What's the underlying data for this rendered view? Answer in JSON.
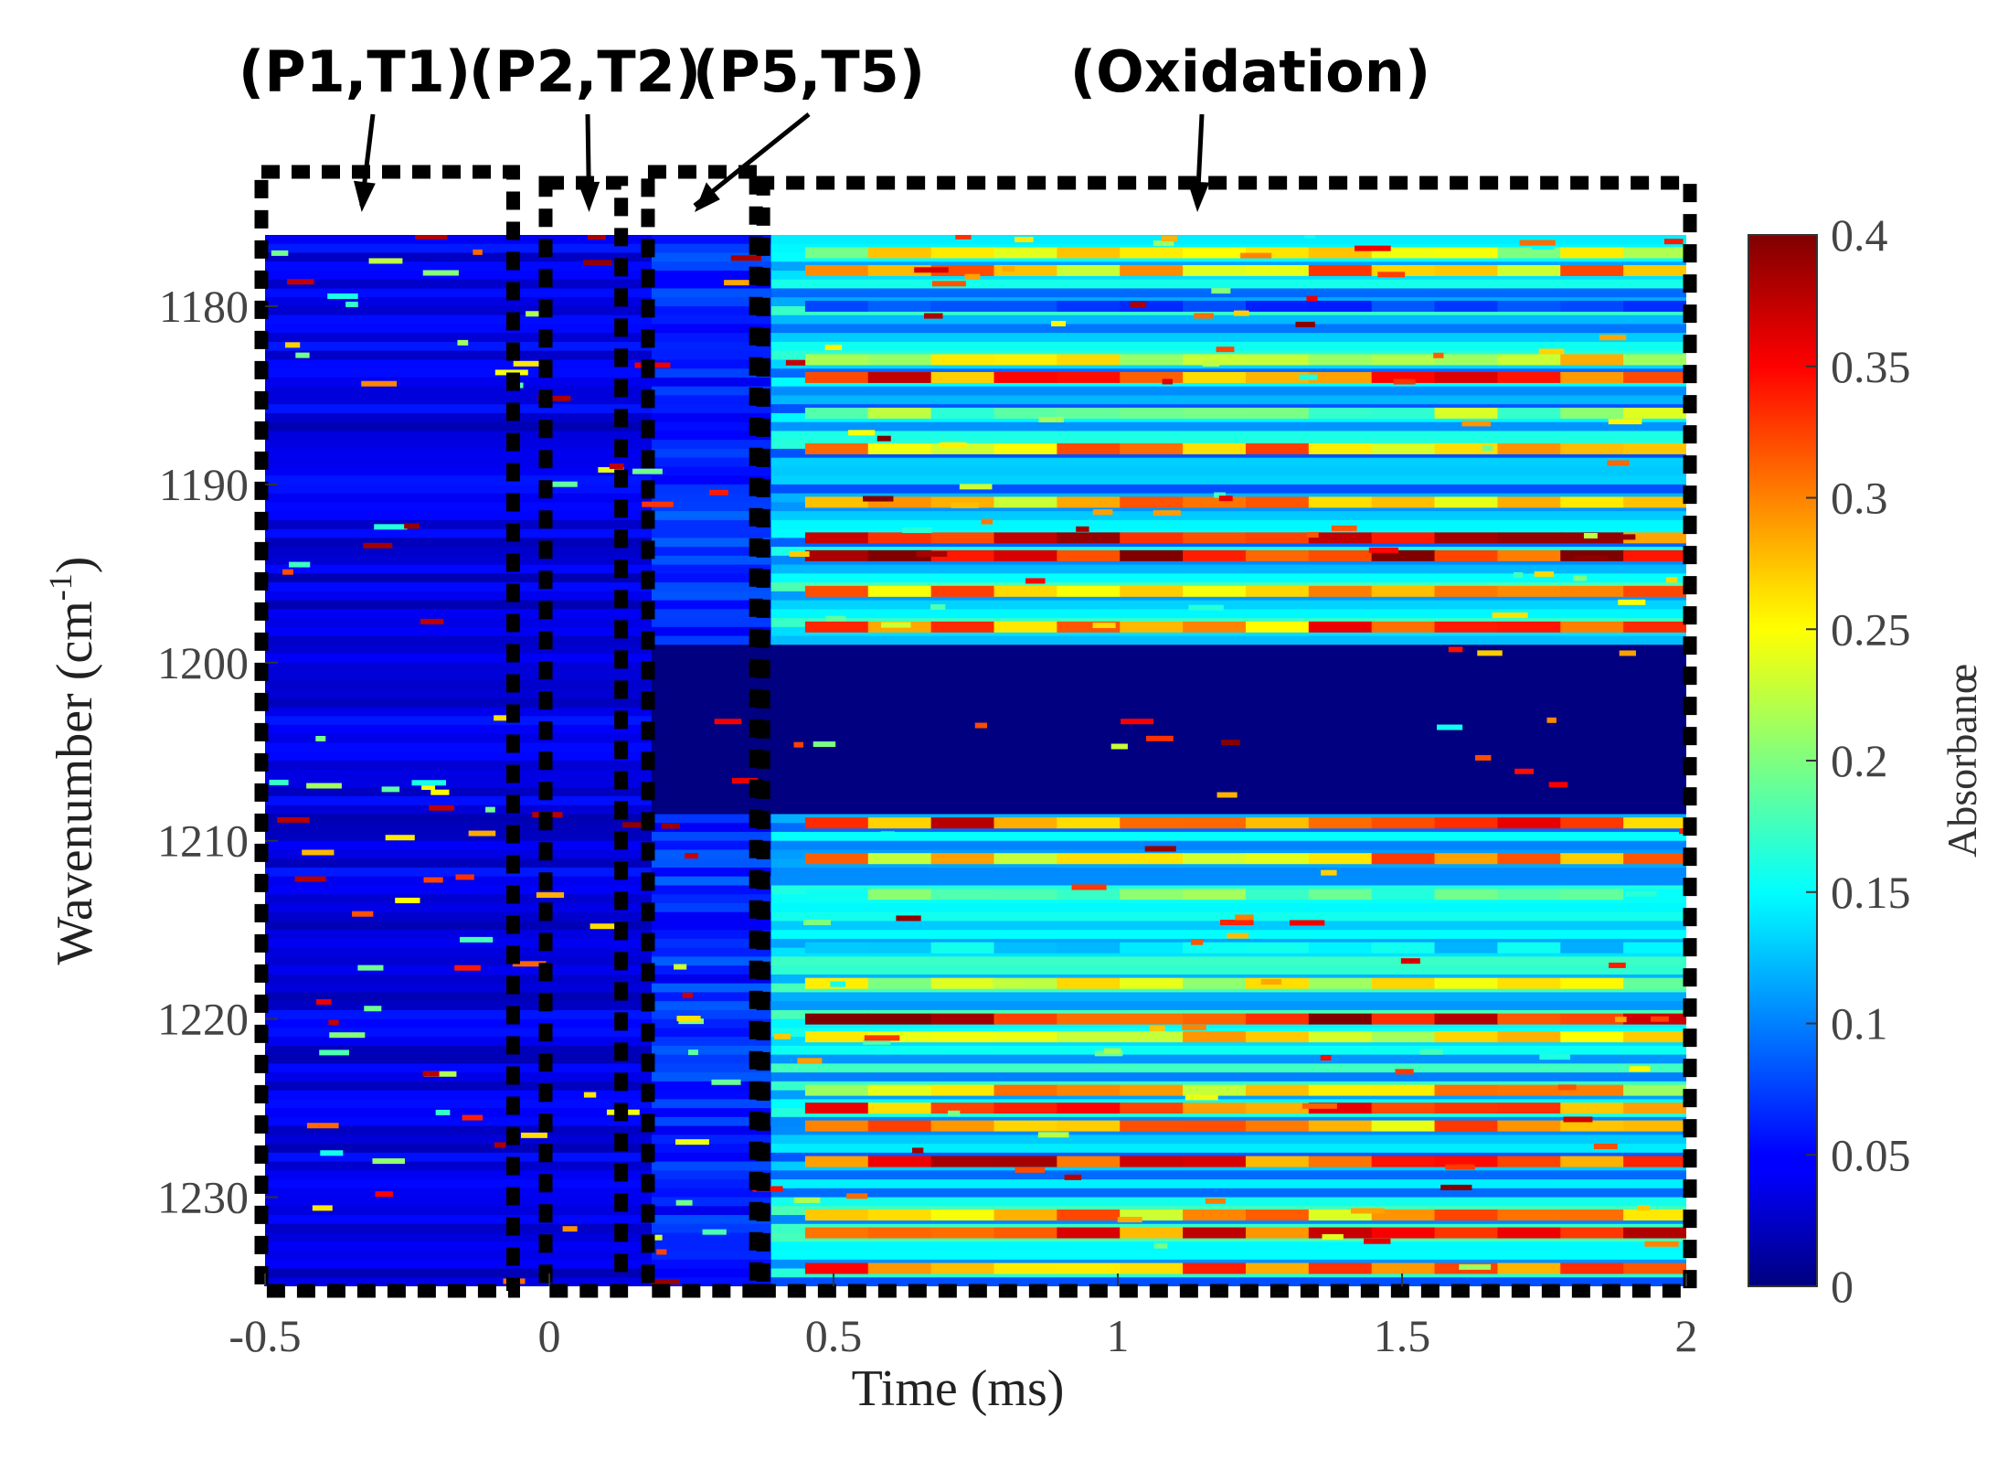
{
  "chart_data": {
    "type": "heatmap",
    "title": "",
    "xlabel": "Time (ms)",
    "ylabel": "Wavenumber (cm",
    "ylabel_sup": "-1",
    "ylabel_close": ")",
    "xlim": [
      -0.5,
      2
    ],
    "ylim": [
      1235,
      1176
    ],
    "x_ticks": [
      -0.5,
      0,
      0.5,
      1,
      1.5,
      2
    ],
    "x_tick_labels": [
      "-0.5",
      "0",
      "0.5",
      "1",
      "1.5",
      "2"
    ],
    "y_ticks": [
      1180,
      1190,
      1200,
      1210,
      1220,
      1230
    ],
    "y_tick_labels": [
      "1180",
      "1190",
      "1200",
      "1210",
      "1220",
      "1230"
    ],
    "colormap": "jet",
    "colorbar": {
      "label": "Absorbanœ",
      "range": [
        0,
        0.4
      ],
      "ticks": [
        0,
        0.05,
        0.1,
        0.15,
        0.2,
        0.25,
        0.3,
        0.35,
        0.4
      ],
      "tick_labels": [
        "0",
        "0.05",
        "0.1",
        "0.15",
        "0.2",
        "0.25",
        "0.3",
        "0.35",
        "0.4"
      ]
    },
    "regions": [
      {
        "label": "(P1,T1)",
        "x_range": [
          -0.5,
          -0.07
        ],
        "arrow_x": -0.33
      },
      {
        "label": "(P2,T2)",
        "x_range": [
          0.0,
          0.12
        ],
        "arrow_x": 0.07
      },
      {
        "label": "(P5,T5)",
        "x_range": [
          0.18,
          0.37
        ],
        "arrow_x": 0.25
      },
      {
        "label": "(Oxidation)",
        "x_range": [
          0.37,
          2.0
        ],
        "arrow_x": 1.14
      }
    ],
    "bands": [
      {
        "y": 1177,
        "value": 0.25
      },
      {
        "y": 1178,
        "value": 0.3
      },
      {
        "y": 1180,
        "value": 0.08
      },
      {
        "y": 1183,
        "value": 0.27
      },
      {
        "y": 1184,
        "value": 0.35
      },
      {
        "y": 1186,
        "value": 0.22
      },
      {
        "y": 1188,
        "value": 0.3
      },
      {
        "y": 1191,
        "value": 0.3
      },
      {
        "y": 1193,
        "value": 0.36
      },
      {
        "y": 1194,
        "value": 0.4
      },
      {
        "y": 1196,
        "value": 0.3
      },
      {
        "y": 1198,
        "value": 0.33
      },
      {
        "y": 1209,
        "value": 0.35
      },
      {
        "y": 1211,
        "value": 0.3
      },
      {
        "y": 1213,
        "value": 0.2
      },
      {
        "y": 1216,
        "value": 0.15
      },
      {
        "y": 1218,
        "value": 0.25
      },
      {
        "y": 1220,
        "value": 0.38
      },
      {
        "y": 1221,
        "value": 0.27
      },
      {
        "y": 1224,
        "value": 0.28
      },
      {
        "y": 1225,
        "value": 0.33
      },
      {
        "y": 1226,
        "value": 0.3
      },
      {
        "y": 1228,
        "value": 0.36
      },
      {
        "y": 1231,
        "value": 0.3
      },
      {
        "y": 1232,
        "value": 0.35
      },
      {
        "y": 1234,
        "value": 0.33
      }
    ]
  }
}
